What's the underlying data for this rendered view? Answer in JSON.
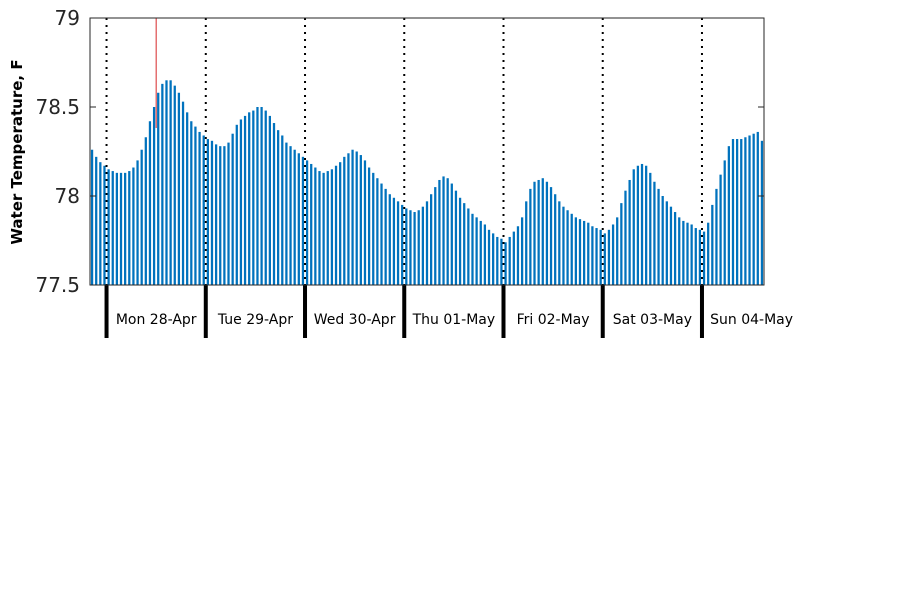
{
  "chart_data": {
    "type": "bar",
    "title": "",
    "ylabel": "Water Temperature, F",
    "xlabel": "",
    "ylim": [
      77.5,
      79
    ],
    "yticks": [
      "77.5",
      "78",
      "78.5",
      "79"
    ],
    "grid": false,
    "legend": "none",
    "x_start": "Sun 27-Apr 20:00",
    "hours_per_bar": 1,
    "day_labels": [
      "Mon 28-Apr",
      "Tue 29-Apr",
      "Wed 30-Apr",
      "Thu 01-May",
      "Fri 02-May",
      "Sat 03-May",
      "Sun 04-May"
    ],
    "current_time_marker": "Mon 28-Apr 12:00",
    "series": [
      {
        "values": [
          78.26,
          78.22,
          78.19,
          78.17,
          78.15,
          78.14,
          78.13,
          78.13,
          78.13,
          78.14,
          78.16,
          78.2,
          78.26,
          78.33,
          78.42,
          78.5,
          78.58,
          78.63,
          78.65,
          78.65,
          78.62,
          78.58,
          78.53,
          78.47,
          78.42,
          78.39,
          78.36,
          78.34,
          78.32,
          78.31,
          78.29,
          78.28,
          78.28,
          78.3,
          78.35,
          78.4,
          78.43,
          78.45,
          78.47,
          78.48,
          78.5,
          78.5,
          78.48,
          78.45,
          78.41,
          78.37,
          78.34,
          78.3,
          78.28,
          78.26,
          78.24,
          78.22,
          78.2,
          78.18,
          78.16,
          78.14,
          78.13,
          78.14,
          78.15,
          78.17,
          78.19,
          78.22,
          78.24,
          78.26,
          78.25,
          78.23,
          78.2,
          78.16,
          78.13,
          78.1,
          78.07,
          78.04,
          78.01,
          77.99,
          77.97,
          77.95,
          77.93,
          77.92,
          77.91,
          77.92,
          77.94,
          77.97,
          78.01,
          78.05,
          78.09,
          78.11,
          78.1,
          78.07,
          78.03,
          77.99,
          77.96,
          77.93,
          77.9,
          77.88,
          77.86,
          77.84,
          77.81,
          77.79,
          77.77,
          77.76,
          77.74,
          77.77,
          77.8,
          77.83,
          77.88,
          77.97,
          78.04,
          78.08,
          78.09,
          78.1,
          78.08,
          78.05,
          78.01,
          77.97,
          77.94,
          77.92,
          77.9,
          77.88,
          77.87,
          77.86,
          77.85,
          77.83,
          77.82,
          77.81,
          77.79,
          77.81,
          77.84,
          77.88,
          77.96,
          78.03,
          78.09,
          78.15,
          78.17,
          78.18,
          78.17,
          78.13,
          78.08,
          78.04,
          78.0,
          77.97,
          77.94,
          77.91,
          77.88,
          77.86,
          77.85,
          77.84,
          77.82,
          77.81,
          77.8,
          77.85,
          77.95,
          78.04,
          78.12,
          78.2,
          78.28,
          78.32,
          78.32,
          78.32,
          78.33,
          78.34,
          78.35,
          78.36,
          78.31
        ]
      }
    ],
    "colors": {
      "bar": "#0072BD",
      "marker": "#D62728",
      "day_boundary": "#000000",
      "axis": "#262626"
    }
  }
}
